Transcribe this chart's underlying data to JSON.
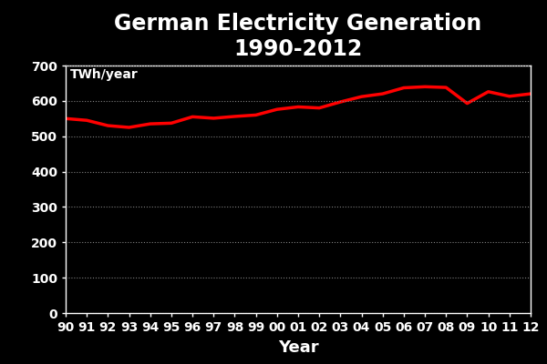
{
  "title": "German Electricity Generation\n1990-2012",
  "xlabel": "Year",
  "ylabel": "TWh/year",
  "background_color": "#000000",
  "line_color": "#ff0000",
  "grid_color": "#808080",
  "text_color": "#ffffff",
  "years": [
    1990,
    1991,
    1992,
    1993,
    1994,
    1995,
    1996,
    1997,
    1998,
    1999,
    2000,
    2001,
    2002,
    2003,
    2004,
    2005,
    2006,
    2007,
    2008,
    2009,
    2010,
    2011,
    2012
  ],
  "values": [
    550,
    545,
    530,
    525,
    535,
    537,
    555,
    551,
    556,
    560,
    576,
    583,
    580,
    597,
    612,
    620,
    637,
    640,
    638,
    593,
    626,
    613,
    620
  ],
  "xlabels": [
    "90",
    "91",
    "92",
    "93",
    "94",
    "95",
    "96",
    "97",
    "98",
    "99",
    "00",
    "01",
    "02",
    "03",
    "04",
    "05",
    "06",
    "07",
    "08",
    "09",
    "10",
    "11",
    "12"
  ],
  "ylim": [
    0,
    700
  ],
  "yticks": [
    0,
    100,
    200,
    300,
    400,
    500,
    600,
    700
  ],
  "line_width": 2.5,
  "title_fontsize": 17,
  "axis_label_fontsize": 13,
  "tick_fontsize": 10,
  "ylabel_fontsize": 10
}
